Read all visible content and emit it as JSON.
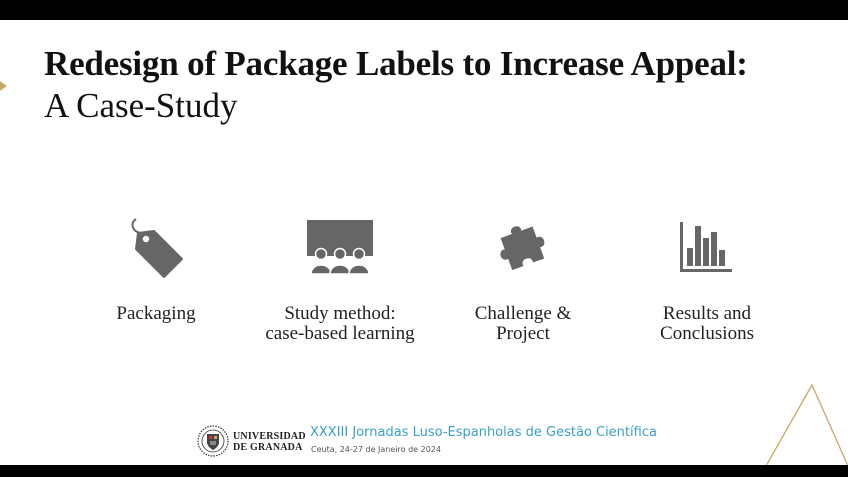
{
  "slide": {
    "title": "Redesign of Package Labels to Increase Appeal:",
    "subtitle": "A Case-Study"
  },
  "features": [
    {
      "label": "Packaging",
      "icon": "price-tag-icon"
    },
    {
      "label": "Study method:\ncase-based learning",
      "icon": "audience-presentation-icon"
    },
    {
      "label": "Challenge &\nProject",
      "icon": "puzzle-piece-icon"
    },
    {
      "label": "Results and\nConclusions",
      "icon": "bar-chart-icon"
    }
  ],
  "footer": {
    "university_line1": "UNIVERSIDAD",
    "university_line2": "DE GRANADA",
    "conference_title": "XXXIII Jornadas Luso-Espanholas de Gestão Científica",
    "conference_subtitle": "Ceuta, 24-27 de Janeiro de 2024"
  },
  "colors": {
    "accent_gold": "#c9a96a",
    "conference_blue": "#3a9fc9",
    "icon_gray": "#666666"
  }
}
